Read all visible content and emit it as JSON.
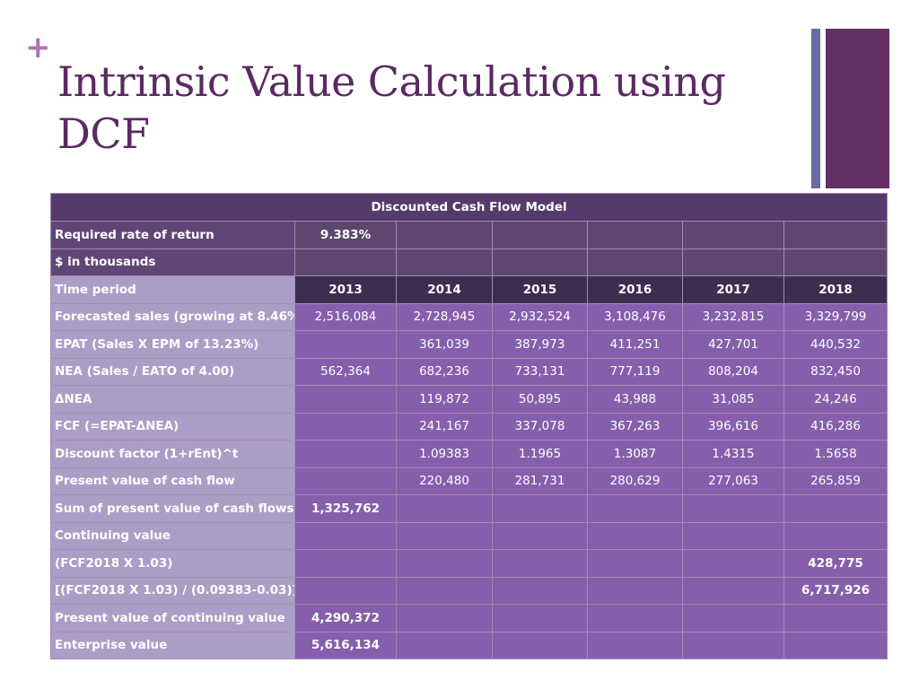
{
  "slide": {
    "plus": "+",
    "title": "Intrinsic Value Calculation using DCF"
  },
  "table": {
    "header": "Discounted Cash Flow Model",
    "required_rate": {
      "label": "Required rate of return",
      "value": "9.383%"
    },
    "thousands_label": "$ in thousands",
    "time_period": {
      "label": "Time period",
      "years": [
        "2013",
        "2014",
        "2015",
        "2016",
        "2017",
        "2018"
      ]
    },
    "rows": [
      {
        "label": "Forecasted sales (growing at 8.46% )",
        "values": [
          "2,516,084",
          "2,728,945",
          "2,932,524",
          "3,108,476",
          "3,232,815",
          "3,329,799"
        ]
      },
      {
        "label": "EPAT (Sales X EPM of 13.23%)",
        "values": [
          "",
          "361,039",
          "387,973",
          "411,251",
          "427,701",
          "440,532"
        ]
      },
      {
        "label": "NEA (Sales / EATO of 4.00)",
        "values": [
          "562,364",
          "682,236",
          "733,131",
          "777,119",
          "808,204",
          "832,450"
        ]
      },
      {
        "label": "ΔNEA",
        "values": [
          "",
          "119,872",
          "50,895",
          "43,988",
          "31,085",
          "24,246"
        ]
      },
      {
        "label": "FCF (=EPAT-ΔNEA)",
        "values": [
          "",
          "241,167",
          "337,078",
          "367,263",
          "396,616",
          "416,286"
        ]
      },
      {
        "label": "Discount factor (1+rEnt)^t",
        "values": [
          "",
          "1.09383",
          "1.1965",
          "1.3087",
          "1.4315",
          "1.5658"
        ]
      },
      {
        "label": "Present value of cash flow",
        "values": [
          "",
          "220,480",
          "281,731",
          "280,629",
          "277,063",
          "265,859"
        ]
      }
    ],
    "sum_pv": {
      "label": "Sum of present value of cash flows",
      "value": "1,325,762"
    },
    "continuing_value": {
      "label": "Continuing value"
    },
    "fcf_growth": {
      "label": "(FCF2018 X 1.03)",
      "value": "428,775"
    },
    "cv_formula": {
      "label": "[(FCF2018 X 1.03) / (0.09383-0.03)]",
      "value": "6,717,926"
    },
    "pv_continuing": {
      "label": "Present value of continuing value",
      "value": "4,290,372"
    },
    "enterprise_value": {
      "label": "Enterprise value",
      "value": "5,616,134"
    }
  }
}
